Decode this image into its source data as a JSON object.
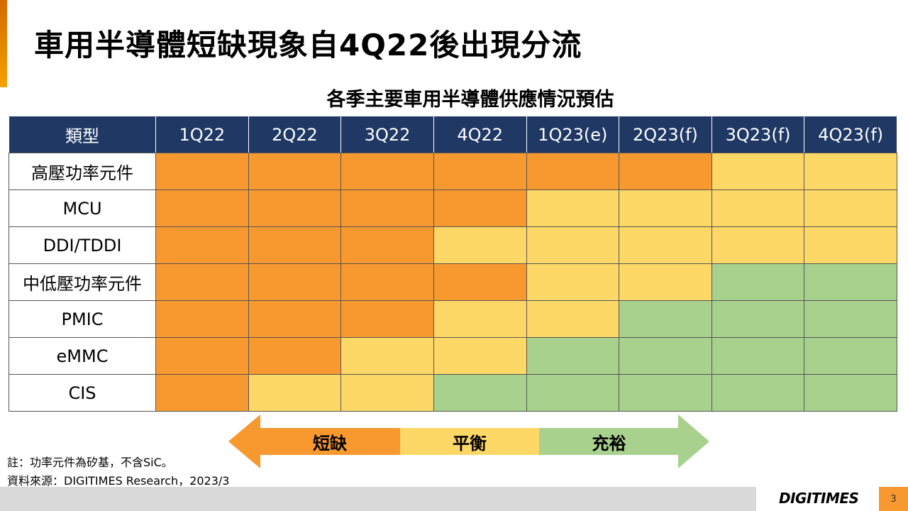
{
  "title": "車用半導體短缺現象自4Q22後出現分流",
  "subtitle": "各季主要車用半導體供應情況預估",
  "table": {
    "headers": [
      "類型",
      "1Q22",
      "2Q22",
      "3Q22",
      "4Q22",
      "1Q23(e)",
      "2Q23(f)",
      "3Q23(f)",
      "4Q23(f)"
    ],
    "rows": [
      {
        "label": "高壓功率元件",
        "status": [
          "shortage",
          "shortage",
          "shortage",
          "shortage",
          "shortage",
          "shortage",
          "balanced",
          "balanced"
        ]
      },
      {
        "label": "MCU",
        "status": [
          "shortage",
          "shortage",
          "shortage",
          "shortage",
          "balanced",
          "balanced",
          "balanced",
          "balanced"
        ]
      },
      {
        "label": "DDI/TDDI",
        "status": [
          "shortage",
          "shortage",
          "shortage",
          "balanced",
          "balanced",
          "balanced",
          "balanced",
          "balanced"
        ]
      },
      {
        "label": "中低壓功率元件",
        "status": [
          "shortage",
          "shortage",
          "shortage",
          "shortage",
          "balanced",
          "balanced",
          "ample",
          "ample"
        ]
      },
      {
        "label": "PMIC",
        "status": [
          "shortage",
          "shortage",
          "shortage",
          "balanced",
          "balanced",
          "ample",
          "ample",
          "ample"
        ]
      },
      {
        "label": "eMMC",
        "status": [
          "shortage",
          "shortage",
          "balanced",
          "balanced",
          "ample",
          "ample",
          "ample",
          "ample"
        ]
      },
      {
        "label": "CIS",
        "status": [
          "shortage",
          "balanced",
          "balanced",
          "ample",
          "ample",
          "ample",
          "ample",
          "ample"
        ]
      }
    ]
  },
  "legend": {
    "shortage": "短缺",
    "balanced": "平衡",
    "ample": "充裕"
  },
  "colors": {
    "shortage": "#f7992f",
    "balanced": "#fed866",
    "ample": "#a9d18e",
    "header": "#1f3864"
  },
  "notes": {
    "note": "註：功率元件為矽基，不含SiC。",
    "source": "資料來源：DIGITIMES Research，2023/3"
  },
  "footer": {
    "logo": "DIGITIMES",
    "page": "3"
  }
}
